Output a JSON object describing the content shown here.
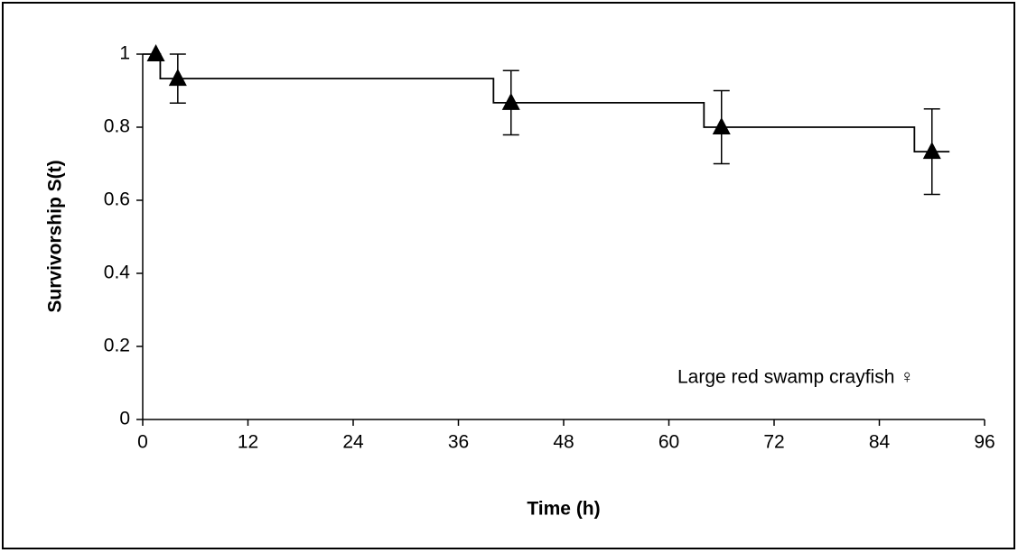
{
  "chart_data": {
    "type": "scatter",
    "x_label": "Time (h)",
    "y_label": "Survivorship S(t)",
    "annotation": "Large red swamp crayfish ♀",
    "xlim": [
      0,
      96
    ],
    "xticks": [
      0,
      12,
      24,
      36,
      48,
      60,
      72,
      84,
      96
    ],
    "ylim": [
      0,
      1
    ],
    "yticks": [
      0,
      0.2,
      0.4,
      0.6,
      0.8,
      1
    ],
    "step": {
      "x": [
        0,
        2,
        40,
        64,
        88,
        92
      ],
      "values": [
        1,
        0.933,
        0.867,
        0.8,
        0.733,
        0.733
      ],
      "color": "#000000"
    },
    "series": [
      {
        "color": "#000000",
        "x": [
          1.5,
          4,
          42,
          66,
          90
        ],
        "values": [
          1,
          0.933,
          0.867,
          0.8,
          0.733
        ],
        "errors": [
          null,
          0.067,
          0.088,
          0.1,
          0.117
        ]
      }
    ]
  }
}
